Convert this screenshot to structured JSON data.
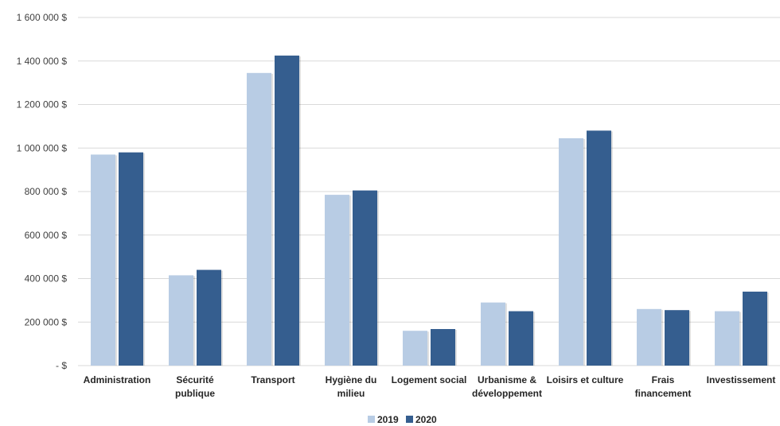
{
  "chart_data": {
    "type": "bar",
    "title": "",
    "xlabel": "",
    "ylabel": "",
    "ylim": [
      0,
      1600000
    ],
    "grid": true,
    "legend_position": "bottom",
    "y_ticks": [
      {
        "value": 0,
        "label": "-   $"
      },
      {
        "value": 200000,
        "label": "200 000  $"
      },
      {
        "value": 400000,
        "label": "400 000  $"
      },
      {
        "value": 600000,
        "label": "600 000  $"
      },
      {
        "value": 800000,
        "label": "800 000  $"
      },
      {
        "value": 1000000,
        "label": "1 000 000  $"
      },
      {
        "value": 1200000,
        "label": "1 200 000  $"
      },
      {
        "value": 1400000,
        "label": "1 400 000  $"
      },
      {
        "value": 1600000,
        "label": "1 600 000  $"
      }
    ],
    "categories": [
      [
        "Administration"
      ],
      [
        "Sécurité",
        "publique"
      ],
      [
        "Transport"
      ],
      [
        "Hygiène du",
        "milieu"
      ],
      [
        "Logement social"
      ],
      [
        "Urbanisme &",
        "développement"
      ],
      [
        "Loisirs et culture"
      ],
      [
        "Frais",
        "financement"
      ],
      [
        "Investissement"
      ]
    ],
    "series": [
      {
        "name": "2019",
        "color": "#b8cce4",
        "values": [
          970000,
          415000,
          1345000,
          785000,
          160000,
          290000,
          1045000,
          260000,
          250000
        ]
      },
      {
        "name": "2020",
        "color": "#355e8f",
        "values": [
          980000,
          440000,
          1425000,
          805000,
          168000,
          250000,
          1080000,
          255000,
          340000
        ]
      }
    ]
  }
}
